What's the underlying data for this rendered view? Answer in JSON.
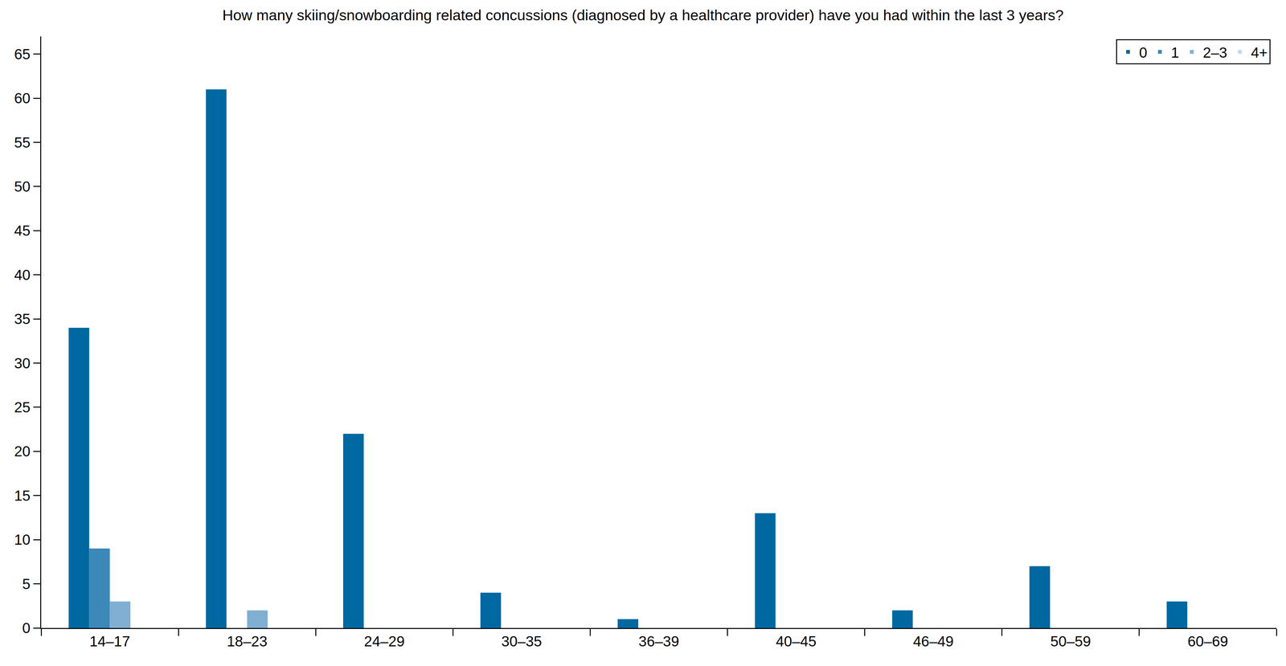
{
  "chart_data": {
    "type": "bar",
    "title": "How many skiing/snowboarding related concussions (diagnosed by a healthcare provider) have you had within the last 3 years?",
    "categories": [
      "14–17",
      "18–23",
      "24–29",
      "30–35",
      "36–39",
      "40–45",
      "46–49",
      "50–59",
      "60–69"
    ],
    "series": [
      {
        "name": "0",
        "color": "#0068a0",
        "values": [
          34,
          61,
          22,
          4,
          1,
          13,
          2,
          7,
          3
        ]
      },
      {
        "name": "1",
        "color": "#3c88b8",
        "values": [
          9,
          0,
          0,
          0,
          0,
          0,
          0,
          0,
          0
        ]
      },
      {
        "name": "2–3",
        "color": "#80afd3",
        "values": [
          3,
          2,
          0,
          0,
          0,
          0,
          0,
          0,
          0
        ]
      },
      {
        "name": "4+",
        "color": "#bcd7ec",
        "values": [
          0,
          0,
          0,
          0,
          0,
          0,
          0,
          0,
          0
        ]
      }
    ],
    "ylim": [
      0,
      67
    ],
    "yticks": [
      0,
      5,
      10,
      15,
      20,
      25,
      30,
      35,
      40,
      45,
      50,
      55,
      60,
      65
    ],
    "grid": false,
    "legend": "upper right"
  }
}
